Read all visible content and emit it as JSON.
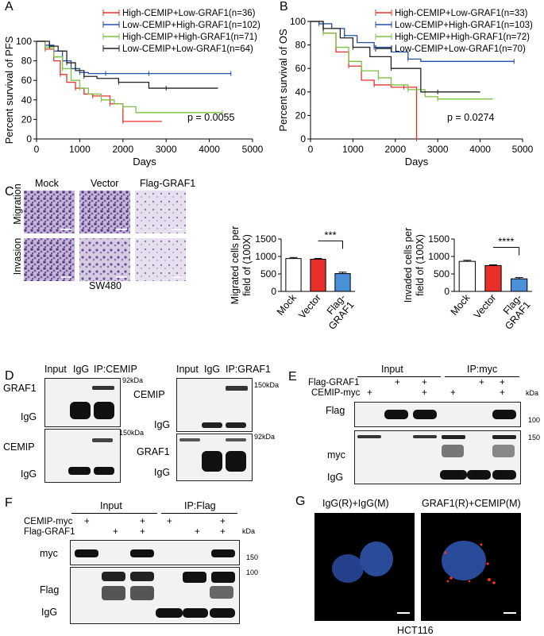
{
  "panels": {
    "A": "A",
    "B": "B",
    "C": "C",
    "D": "D",
    "E": "E",
    "F": "F",
    "G": "G"
  },
  "chart_data": [
    {
      "type": "line",
      "panel": "A",
      "ylabel": "Percent survival of PFS",
      "xlabel": "Days",
      "xlim": [
        0,
        5000
      ],
      "ylim": [
        0,
        100
      ],
      "xticks": [
        0,
        1000,
        2000,
        3000,
        4000,
        5000
      ],
      "yticks": [
        0,
        20,
        40,
        60,
        80,
        100
      ],
      "pvalue": "p = 0.0055",
      "legend_position": "top-right",
      "series": [
        {
          "name": "High-CEMIP+Low-GRAF1(n=36)",
          "color": "#e8302a",
          "x": [
            0,
            200,
            400,
            550,
            700,
            900,
            1100,
            1300,
            1500,
            1700,
            1950,
            2000,
            2900
          ],
          "y": [
            100,
            92,
            80,
            66,
            58,
            52,
            46,
            44,
            44,
            36,
            36,
            18,
            18
          ]
        },
        {
          "name": "Low-CEMIP+High-GRAF1(n=102)",
          "color": "#2350a8",
          "x": [
            0,
            200,
            400,
            600,
            800,
            1000,
            1200,
            1600,
            2000,
            2600,
            3000,
            4500
          ],
          "y": [
            100,
            96,
            90,
            80,
            72,
            68,
            67,
            67,
            67,
            67,
            67,
            67
          ]
        },
        {
          "name": "High-CEMIP+High-GRAF1(n=71)",
          "color": "#7cc242",
          "x": [
            0,
            200,
            400,
            600,
            800,
            1000,
            1200,
            1500,
            1800,
            2000,
            2300,
            4300
          ],
          "y": [
            100,
            94,
            84,
            72,
            60,
            52,
            46,
            40,
            36,
            33,
            27,
            27
          ]
        },
        {
          "name": "Low-CEMIP+Low-GRAF1(n=64)",
          "color": "#222222",
          "x": [
            0,
            300,
            500,
            700,
            900,
            1100,
            1400,
            1900,
            2600,
            3000,
            4200
          ],
          "y": [
            100,
            95,
            90,
            78,
            70,
            64,
            62,
            58,
            52,
            52,
            52
          ]
        }
      ]
    },
    {
      "type": "line",
      "panel": "B",
      "ylabel": "Percent survival of OS",
      "xlabel": "Days",
      "xlim": [
        0,
        5000
      ],
      "ylim": [
        0,
        100
      ],
      "xticks": [
        0,
        1000,
        2000,
        3000,
        4000,
        5000
      ],
      "yticks": [
        0,
        20,
        40,
        60,
        80,
        100
      ],
      "pvalue": "p = 0.0274",
      "legend_position": "top-right",
      "series": [
        {
          "name": "High-CEMIP+Low-GRAF1(n=33)",
          "color": "#e8302a",
          "x": [
            0,
            300,
            600,
            900,
            1200,
            1500,
            1900,
            2200,
            2480,
            2500
          ],
          "y": [
            100,
            90,
            74,
            62,
            50,
            46,
            44,
            44,
            44,
            0
          ]
        },
        {
          "name": "Low-CEMIP+High-GRAF1(n=103)",
          "color": "#2350a8",
          "x": [
            0,
            200,
            500,
            800,
            1100,
            1500,
            1900,
            2300,
            2600,
            4800
          ],
          "y": [
            100,
            98,
            94,
            88,
            82,
            78,
            74,
            68,
            66,
            66
          ]
        },
        {
          "name": "High-CEMIP+High-GRAF1(n=72)",
          "color": "#7cc242",
          "x": [
            0,
            300,
            600,
            900,
            1200,
            1600,
            1900,
            2300,
            2700,
            3000,
            4300
          ],
          "y": [
            100,
            90,
            78,
            66,
            58,
            52,
            46,
            42,
            36,
            34,
            34
          ]
        },
        {
          "name": "Low-CEMIP+Low-GRAF1(n=70)",
          "color": "#222222",
          "x": [
            0,
            300,
            700,
            1000,
            1400,
            1900,
            2600,
            3000,
            4000
          ],
          "y": [
            100,
            94,
            86,
            78,
            70,
            60,
            40,
            40,
            40
          ]
        }
      ]
    },
    {
      "type": "bar",
      "panel": "C-migration",
      "ylabel": "Migrated cells per field of (100X)",
      "categories": [
        "Mock",
        "Vector",
        "Flag-GRAF1"
      ],
      "values": [
        940,
        920,
        510
      ],
      "errors": [
        30,
        25,
        40
      ],
      "colors": [
        "#ffffff",
        "#e8302a",
        "#4a90d9"
      ],
      "ylim": [
        0,
        1500
      ],
      "yticks": [
        0,
        500,
        1000,
        1500
      ],
      "significance": "***"
    },
    {
      "type": "bar",
      "panel": "C-invasion",
      "ylabel": "Invaded cells per field of (100X)",
      "categories": [
        "Mock",
        "Vector",
        "Flag-GRAF1"
      ],
      "values": [
        860,
        740,
        360
      ],
      "errors": [
        30,
        20,
        35
      ],
      "colors": [
        "#ffffff",
        "#e8302a",
        "#4a90d9"
      ],
      "ylim": [
        0,
        1500
      ],
      "yticks": [
        0,
        500,
        1000,
        1500
      ],
      "significance": "****"
    }
  ],
  "c_images": {
    "cols": [
      "Mock",
      "Vector",
      "Flag-GRAF1"
    ],
    "rows": [
      "Migration",
      "Invasion"
    ],
    "cell_line": "SW480"
  },
  "d_left": {
    "lanes": [
      "Input",
      "IgG",
      "IP:CEMIP"
    ],
    "labels": [
      "GRAF1",
      "IgG",
      "CEMIP",
      "IgG"
    ],
    "markers": [
      "92kDa",
      "150kDa"
    ]
  },
  "d_right": {
    "lanes": [
      "Input",
      "IgG",
      "IP:GRAF1"
    ],
    "labels": [
      "CEMIP",
      "IgG",
      "GRAF1",
      "IgG"
    ],
    "markers": [
      "150kDa",
      "92kDa"
    ]
  },
  "e": {
    "groups": [
      "Input",
      "IP:myc"
    ],
    "rows": [
      "Flag-GRAF1",
      "CEMIP-myc"
    ],
    "kda": "kDa",
    "labels": [
      "Flag",
      "myc",
      "IgG"
    ],
    "markers": [
      "100",
      "150"
    ],
    "plus": "+"
  },
  "f": {
    "groups": [
      "Input",
      "IP:Flag"
    ],
    "rows": [
      "CEMIP-myc",
      "Flag-GRAF1"
    ],
    "kda": "kDa",
    "labels": [
      "myc",
      "Flag",
      "IgG"
    ],
    "markers": [
      "150",
      "100"
    ],
    "plus": "+"
  },
  "g": {
    "titles": [
      "IgG(R)+IgG(M)",
      "GRAF1(R)+CEMIP(M)"
    ],
    "cell_line": "HCT116"
  }
}
